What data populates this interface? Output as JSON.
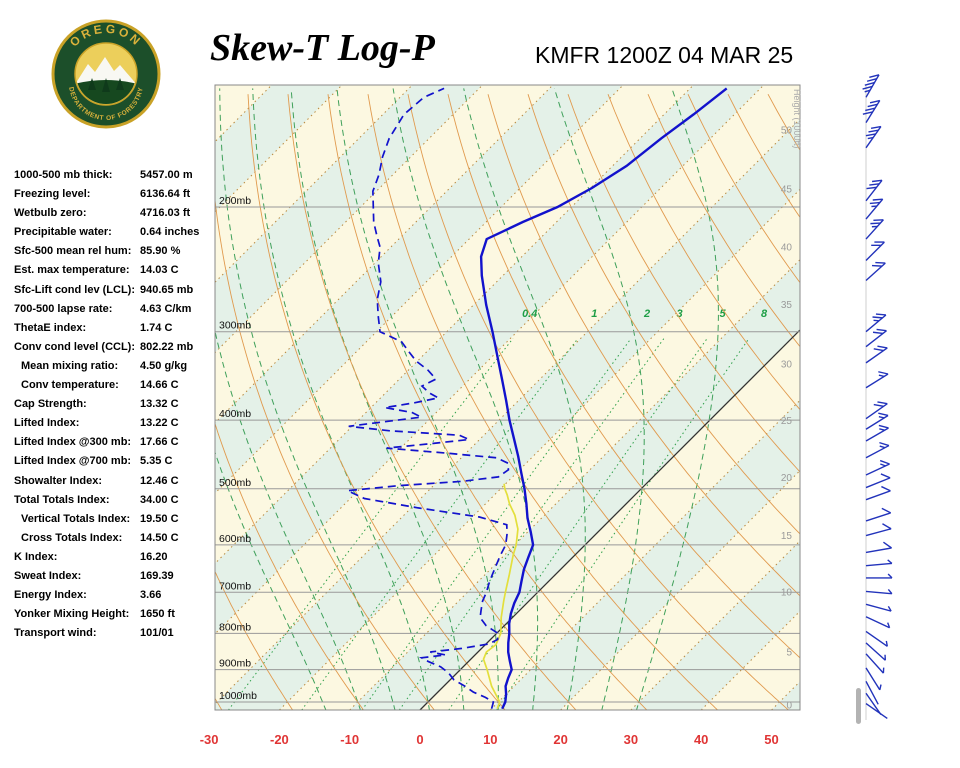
{
  "meta": {
    "title": "Skew-T Log-P",
    "station": "KMFR 1200Z 04 MAR 25"
  },
  "logo": {
    "top_text": "OREGON",
    "bottom_text": "DEPARTMENT OF FORESTRY"
  },
  "indices": [
    {
      "label": "1000-500 mb thick:",
      "value": "5457.00 m"
    },
    {
      "label": "Freezing level:",
      "value": "6136.64 ft"
    },
    {
      "label": "Wetbulb zero:",
      "value": "4716.03 ft"
    },
    {
      "label": "Precipitable water:",
      "value": "0.64 inches"
    },
    {
      "label": "Sfc-500 mean rel hum:",
      "value": "85.90 %"
    },
    {
      "label": "Est. max temperature:",
      "value": "14.03 C"
    },
    {
      "label": "Sfc-Lift cond lev (LCL):",
      "value": "940.65 mb"
    },
    {
      "label": "700-500 lapse rate:",
      "value": "4.63 C/km"
    },
    {
      "label": "ThetaE index:",
      "value": "1.74 C"
    },
    {
      "label": "Conv cond level (CCL):",
      "value": "802.22 mb"
    },
    {
      "label": "Mean mixing ratio:",
      "value": "4.50 g/kg",
      "indent": true
    },
    {
      "label": "Conv temperature:",
      "value": "14.66 C",
      "indent": true
    },
    {
      "label": "Cap Strength:",
      "value": "13.32 C"
    },
    {
      "label": "Lifted Index:",
      "value": "13.22 C"
    },
    {
      "label": "Lifted Index @300 mb:",
      "value": "17.66 C"
    },
    {
      "label": "Lifted Index @700 mb:",
      "value": "5.35 C"
    },
    {
      "label": "Showalter Index:",
      "value": "12.46 C"
    },
    {
      "label": "Total Totals Index:",
      "value": "34.00 C"
    },
    {
      "label": "Vertical Totals Index:",
      "value": "19.50 C",
      "indent": true
    },
    {
      "label": "Cross Totals Index:",
      "value": "14.50 C",
      "indent": true
    },
    {
      "label": "K Index:",
      "value": "16.20"
    },
    {
      "label": "Sweat Index:",
      "value": "169.39"
    },
    {
      "label": "Energy Index:",
      "value": "3.66"
    },
    {
      "label": "Yonker Mixing Height:",
      "value": "1650 ft"
    },
    {
      "label": "Transport wind:",
      "value": "101/01"
    }
  ],
  "chart_data": {
    "type": "skew-t-log-p",
    "pressure_lines_mb": [
      200,
      300,
      400,
      500,
      600,
      700,
      800,
      900,
      1000
    ],
    "pressure_label_suffix": "mb",
    "temp_axis_c": [
      -30,
      -20,
      -10,
      0,
      10,
      20,
      30,
      40,
      50
    ],
    "isotherms": {
      "min": -120,
      "max": 50,
      "step": 10
    },
    "dry_adiabats_c": [
      -30,
      -20,
      -10,
      0,
      10,
      20,
      30,
      40,
      50,
      60,
      70,
      80,
      90,
      100,
      110,
      120,
      130,
      140,
      150,
      160
    ],
    "moist_adiabats_c": [
      -15,
      -10,
      -5,
      0,
      5,
      10,
      15,
      20,
      25,
      30
    ],
    "mixing_ratio_g_kg": [
      0.4,
      1,
      2,
      3,
      5,
      8
    ],
    "height_scale": {
      "label": "Height (1000ft)",
      "ticks": [
        {
          "label": "50",
          "p": 156
        },
        {
          "label": "45",
          "p": 189
        },
        {
          "label": "40",
          "p": 228
        },
        {
          "label": "35",
          "p": 275
        },
        {
          "label": "30",
          "p": 334
        },
        {
          "label": "25",
          "p": 401
        },
        {
          "label": "20",
          "p": 483
        },
        {
          "label": "15",
          "p": 583
        },
        {
          "label": "10",
          "p": 700
        },
        {
          "label": "5",
          "p": 851
        },
        {
          "label": "0",
          "p": 1012
        }
      ]
    },
    "temperature_profile": [
      [
        1022,
        11.5
      ],
      [
        1000,
        11.0
      ],
      [
        975,
        10.0
      ],
      [
        950,
        8.8
      ],
      [
        925,
        8.0
      ],
      [
        900,
        7.3
      ],
      [
        875,
        5.8
      ],
      [
        850,
        4.3
      ],
      [
        825,
        3.0
      ],
      [
        800,
        1.8
      ],
      [
        775,
        0.4
      ],
      [
        750,
        -0.8
      ],
      [
        725,
        -1.8
      ],
      [
        700,
        -2.6
      ],
      [
        675,
        -3.9
      ],
      [
        650,
        -5.2
      ],
      [
        625,
        -6.3
      ],
      [
        600,
        -7.4
      ],
      [
        575,
        -9.6
      ],
      [
        550,
        -12.0
      ],
      [
        525,
        -14.2
      ],
      [
        500,
        -16.6
      ],
      [
        475,
        -19.3
      ],
      [
        450,
        -22.1
      ],
      [
        425,
        -25.2
      ],
      [
        400,
        -28.5
      ],
      [
        375,
        -31.8
      ],
      [
        350,
        -35.4
      ],
      [
        325,
        -39.3
      ],
      [
        300,
        -43.5
      ],
      [
        275,
        -48.2
      ],
      [
        250,
        -53.0
      ],
      [
        235,
        -55.8
      ],
      [
        222,
        -57.5
      ],
      [
        210,
        -54.8
      ],
      [
        200,
        -52.0
      ],
      [
        188,
        -49.8
      ],
      [
        175,
        -48.0
      ],
      [
        160,
        -47.0
      ],
      [
        148,
        -45.8
      ],
      [
        136,
        -44.8
      ]
    ],
    "dewpoint_profile": [
      [
        1022,
        10.0
      ],
      [
        1000,
        9.3
      ],
      [
        985,
        7.5
      ],
      [
        968,
        5.0
      ],
      [
        950,
        3.0
      ],
      [
        930,
        0.5
      ],
      [
        910,
        -1.2
      ],
      [
        892,
        -3.2
      ],
      [
        876,
        -5.8
      ],
      [
        866,
        -7.2
      ],
      [
        858,
        -4.2
      ],
      [
        850,
        -6.8
      ],
      [
        840,
        -2.8
      ],
      [
        828,
        0.4
      ],
      [
        816,
        1.0
      ],
      [
        800,
        0.2
      ],
      [
        780,
        -2.6
      ],
      [
        760,
        -4.6
      ],
      [
        740,
        -5.6
      ],
      [
        720,
        -6.6
      ],
      [
        700,
        -7.3
      ],
      [
        680,
        -8.2
      ],
      [
        660,
        -9.0
      ],
      [
        640,
        -9.8
      ],
      [
        620,
        -10.6
      ],
      [
        600,
        -11.3
      ],
      [
        580,
        -12.6
      ],
      [
        562,
        -14.0
      ],
      [
        548,
        -19.0
      ],
      [
        532,
        -29.0
      ],
      [
        516,
        -38.0
      ],
      [
        503,
        -41.5
      ],
      [
        495,
        -35.0
      ],
      [
        488,
        -26.5
      ],
      [
        481,
        -22.0
      ],
      [
        470,
        -21.6
      ],
      [
        460,
        -22.6
      ],
      [
        452,
        -25.0
      ],
      [
        445,
        -33.0
      ],
      [
        438,
        -42.0
      ],
      [
        432,
        -36.5
      ],
      [
        426,
        -31.5
      ],
      [
        420,
        -33.5
      ],
      [
        414,
        -44.0
      ],
      [
        408,
        -50.5
      ],
      [
        402,
        -46.0
      ],
      [
        396,
        -41.5
      ],
      [
        390,
        -43.5
      ],
      [
        384,
        -48.0
      ],
      [
        378,
        -44.5
      ],
      [
        372,
        -41.8
      ],
      [
        366,
        -43.8
      ],
      [
        358,
        -45.8
      ],
      [
        350,
        -44.8
      ],
      [
        340,
        -47.2
      ],
      [
        330,
        -50.2
      ],
      [
        320,
        -52.6
      ],
      [
        310,
        -55.0
      ],
      [
        300,
        -59.5
      ],
      [
        285,
        -62.0
      ],
      [
        270,
        -64.5
      ],
      [
        255,
        -66.5
      ],
      [
        240,
        -69.5
      ],
      [
        228,
        -71.5
      ],
      [
        220,
        -73.5
      ],
      [
        210,
        -76.0
      ],
      [
        200,
        -78.2
      ],
      [
        190,
        -80.5
      ],
      [
        180,
        -82.0
      ],
      [
        170,
        -84.0
      ],
      [
        160,
        -85.7
      ],
      [
        148,
        -87.0
      ],
      [
        140,
        -86.6
      ],
      [
        136,
        -85.0
      ]
    ],
    "wetbulb_profile": [
      [
        1022,
        10.8
      ],
      [
        1000,
        10.2
      ],
      [
        950,
        6.8
      ],
      [
        900,
        3.8
      ],
      [
        870,
        1.8
      ],
      [
        850,
        1.2
      ],
      [
        830,
        1.5
      ],
      [
        800,
        0.6
      ],
      [
        760,
        -1.6
      ],
      [
        720,
        -3.6
      ],
      [
        700,
        -4.6
      ],
      [
        660,
        -6.6
      ],
      [
        620,
        -8.8
      ],
      [
        600,
        -9.8
      ],
      [
        570,
        -11.8
      ],
      [
        545,
        -14.2
      ],
      [
        525,
        -16.6
      ],
      [
        510,
        -18.2
      ],
      [
        500,
        -19.4
      ],
      [
        492,
        -20.2
      ]
    ],
    "wind_barbs": [
      [
        140,
        30,
        45
      ],
      [
        152,
        32,
        40
      ],
      [
        165,
        35,
        35
      ],
      [
        196,
        38,
        30
      ],
      [
        208,
        40,
        25
      ],
      [
        222,
        42,
        25
      ],
      [
        238,
        45,
        20
      ],
      [
        254,
        48,
        20
      ],
      [
        300,
        50,
        25
      ],
      [
        315,
        52,
        20
      ],
      [
        332,
        55,
        20
      ],
      [
        360,
        58,
        15
      ],
      [
        398,
        55,
        20
      ],
      [
        412,
        58,
        15
      ],
      [
        428,
        60,
        15
      ],
      [
        452,
        62,
        15
      ],
      [
        478,
        65,
        15
      ],
      [
        498,
        68,
        10
      ],
      [
        518,
        70,
        10
      ],
      [
        555,
        72,
        10
      ],
      [
        582,
        75,
        10
      ],
      [
        615,
        80,
        10
      ],
      [
        642,
        85,
        5
      ],
      [
        668,
        90,
        5
      ],
      [
        698,
        95,
        5
      ],
      [
        728,
        105,
        5
      ],
      [
        758,
        115,
        5
      ],
      [
        795,
        125,
        5
      ],
      [
        825,
        132,
        5
      ],
      [
        855,
        138,
        5
      ],
      [
        895,
        148,
        5
      ],
      [
        935,
        152,
        3
      ],
      [
        972,
        145,
        2
      ],
      [
        1005,
        125,
        2
      ]
    ],
    "colors": {
      "band_warm": "#fcf8e1",
      "band_cool": "#e4f1e8",
      "isotherm": "#b8893e",
      "zero_isotherm": "#333333",
      "dry_adiabat": "#e09a4e",
      "moist_adiabat": "#3fa05a",
      "mixing_ratio": "#2fa04a",
      "mixing_label": "#1e9e46",
      "pressure_line": "#999999",
      "border": "#888888",
      "temp_axis": "#e03535",
      "height_label": "#9a9a9a",
      "sounding": "#1212cc",
      "wetbulb": "#e3df3c",
      "barb": "#2233bb"
    },
    "axis": {
      "p_top_mb": 134.5,
      "p_bottom_mb": 1026.6,
      "t_left_bottom_c": -30,
      "t_right_bottom_c": 54
    }
  }
}
